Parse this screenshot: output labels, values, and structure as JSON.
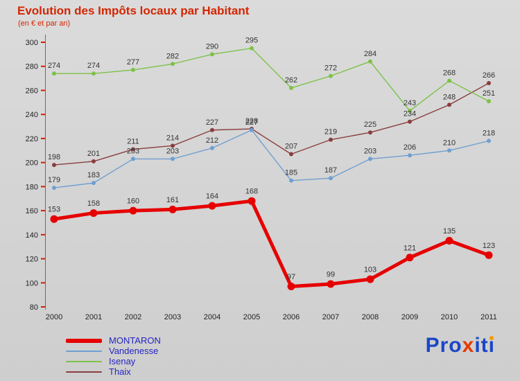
{
  "title": "Evolution des Impôts locaux par Habitant",
  "subtitle": "(en € et par an)",
  "colors": {
    "title": "#d32500",
    "subtitle": "#d32500",
    "axis": "#6b6b6b",
    "tick": "#cc2200",
    "value_label": "#333333",
    "legend_text": "#2424c4"
  },
  "chart_data": {
    "type": "line",
    "title": "Evolution des Impôts locaux par Habitant",
    "subtitle": "(en € et par an)",
    "x_labels": [
      "2000",
      "2001",
      "2002",
      "2003",
      "2004",
      "2005",
      "2006",
      "2007",
      "2008",
      "2009",
      "2010",
      "2011"
    ],
    "series": [
      {
        "name": "MONTARON",
        "color": "#e60000",
        "line_width": 5,
        "marker_radius": 5.5,
        "values": [
          153,
          158,
          160,
          161,
          164,
          168,
          97,
          99,
          103,
          121,
          135,
          123
        ]
      },
      {
        "name": "Vandenesse",
        "color": "#6f9fd0",
        "line_width": 1.4,
        "marker_radius": 3,
        "values": [
          179,
          183,
          203,
          203,
          212,
          227,
          185,
          187,
          203,
          206,
          210,
          218
        ]
      },
      {
        "name": "Isenay",
        "color": "#7cc247",
        "line_width": 1.4,
        "marker_radius": 3,
        "values": [
          274,
          274,
          277,
          282,
          290,
          295,
          262,
          272,
          284,
          243,
          268,
          251
        ]
      },
      {
        "name": "Thaix",
        "color": "#8a3d3d",
        "line_width": 1.4,
        "marker_radius": 3,
        "values": [
          198,
          201,
          211,
          214,
          227,
          228,
          207,
          219,
          225,
          234,
          248,
          266
        ]
      }
    ],
    "ylim": [
      80,
      300
    ],
    "yticks": [
      80,
      100,
      120,
      140,
      160,
      180,
      200,
      220,
      240,
      260,
      280,
      300
    ],
    "grid": false,
    "legend_position": "bottom-left"
  },
  "legend": {
    "items": [
      {
        "label": "MONTARON",
        "color": "#e60000",
        "thick": true
      },
      {
        "label": "Vandenesse",
        "color": "#6f9fd0",
        "thick": false
      },
      {
        "label": "Isenay",
        "color": "#7cc247",
        "thick": false
      },
      {
        "label": "Thaix",
        "color": "#8a3d3d",
        "thick": false
      }
    ]
  },
  "logo": {
    "text": "Proxiti",
    "letters": [
      {
        "ch": "P",
        "color": "#1b46c8"
      },
      {
        "ch": "r",
        "color": "#1b46c8"
      },
      {
        "ch": "o",
        "color": "#1b46c8"
      },
      {
        "ch": "x",
        "color": "#e83800"
      },
      {
        "ch": "i",
        "color": "#1b46c8"
      },
      {
        "ch": "t",
        "color": "#1b46c8"
      },
      {
        "ch": "i",
        "color": "#1b46c8",
        "dot": "#f59a00"
      }
    ]
  }
}
